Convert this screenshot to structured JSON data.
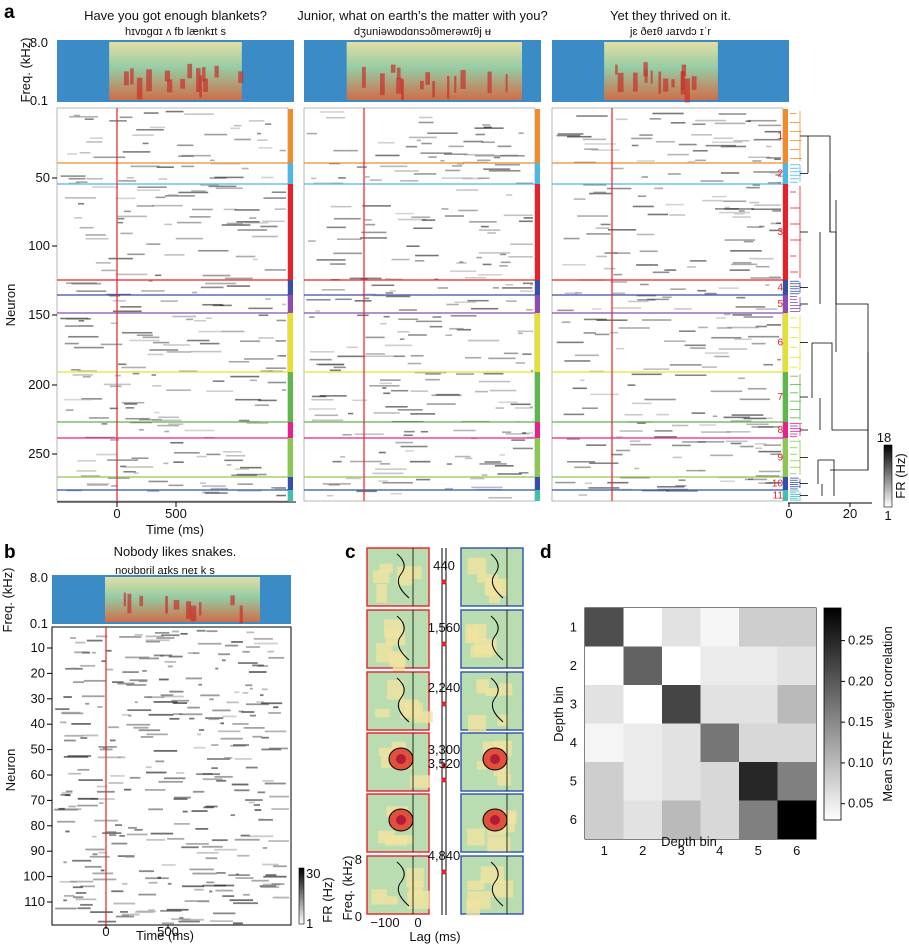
{
  "panels": {
    "a": {
      "letter": "a",
      "sentences": [
        {
          "title": "Have you got enough blankets?",
          "phonemes": "hɪvɒɡɑɪ ʌ fb lænkɪt s"
        },
        {
          "title": "Junior, what on earth’s the matter with you?",
          "phonemes": "dʒuniəwɒdɑnsɔðmerəwɪθj ʉ"
        },
        {
          "title": "Yet they thrived on it.",
          "phonemes": "jɛ ðeɪθ ɹaɪvdɔ ɪˈr"
        }
      ],
      "freq_axis": {
        "label": "Freq. (kHz)",
        "top": "8.0",
        "bottom": "0.1"
      },
      "neuron_axis": {
        "label": "Neuron",
        "ticks": [
          "50",
          "100",
          "150",
          "200",
          "250"
        ]
      },
      "time_axis": {
        "label": "Time (ms)",
        "ticks": [
          "0",
          "500"
        ]
      },
      "clusters": [
        "1",
        "2",
        "3",
        "4",
        "5",
        "6",
        "7",
        "8",
        "9",
        "10",
        "11"
      ],
      "cluster_colors": [
        "#f28c28",
        "#4db8e8",
        "#e8202a",
        "#3a4ea8",
        "#8e4bb0",
        "#e8e030",
        "#5cb84a",
        "#e8208a",
        "#8cc850",
        "#3050b0",
        "#40c0b0"
      ],
      "dendro_axis": {
        "ticks": [
          "0",
          "20"
        ]
      },
      "colorbar": {
        "label": "FR (Hz)",
        "max": "18",
        "min": "1"
      }
    },
    "b": {
      "letter": "b",
      "title": "Nobody likes snakes.",
      "phonemes": "noʊbɒril aɪks neɪ k s",
      "freq_axis": {
        "label": "Freq. (kHz)",
        "top": "8.0",
        "bottom": "0.1"
      },
      "neuron_axis": {
        "label": "Neuron",
        "ticks": [
          "10",
          "20",
          "30",
          "40",
          "50",
          "60",
          "70",
          "80",
          "90",
          "100",
          "110"
        ]
      },
      "time_axis": {
        "label": "Time (ms)",
        "ticks": [
          "0",
          "500"
        ]
      },
      "colorbar": {
        "label": "FR (Hz)",
        "max": "30",
        "min": "1"
      }
    },
    "c": {
      "letter": "c",
      "depths": [
        "440",
        "1,560",
        "2,240",
        "3,300",
        "3,520",
        "4,840"
      ],
      "freq_label": "Freq. (kHz)",
      "freq_ticks": [
        "8",
        "0"
      ],
      "lag_label": "Lag (ms)",
      "lag_ticks": [
        "−100",
        "0"
      ]
    },
    "d": {
      "letter": "d",
      "xlabel": "Depth bin",
      "ylabel": "Depth bin",
      "colorbar_label": "Mean STRF weight correlation",
      "colorbar_ticks": [
        "0.25",
        "0.20",
        "0.15",
        "0.10",
        "0.05"
      ]
    }
  },
  "chart_data": {
    "type": "heatmap",
    "title": "",
    "xlabel": "Depth bin",
    "ylabel": "Depth bin",
    "x": [
      "1",
      "2",
      "3",
      "4",
      "5",
      "6"
    ],
    "y": [
      "1",
      "2",
      "3",
      "4",
      "5",
      "6"
    ],
    "values": [
      [
        0.21,
        0.03,
        0.06,
        0.04,
        0.08,
        0.08
      ],
      [
        0.03,
        0.19,
        0.03,
        0.05,
        0.05,
        0.06
      ],
      [
        0.06,
        0.03,
        0.22,
        0.06,
        0.06,
        0.1
      ],
      [
        0.04,
        0.05,
        0.06,
        0.17,
        0.07,
        0.07
      ],
      [
        0.08,
        0.05,
        0.06,
        0.07,
        0.25,
        0.16
      ],
      [
        0.08,
        0.06,
        0.1,
        0.07,
        0.16,
        0.29
      ]
    ],
    "colorbar_range": [
      0.03,
      0.29
    ]
  }
}
